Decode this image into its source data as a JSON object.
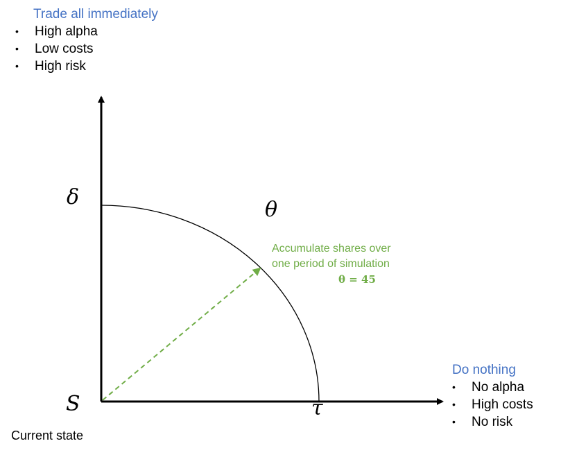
{
  "trade_all": {
    "title": "Trade all immediately",
    "bullets": [
      "High alpha",
      "Low costs",
      "High risk"
    ]
  },
  "do_nothing": {
    "title": "Do nothing",
    "bullets": [
      "No alpha",
      "High costs",
      "No risk"
    ]
  },
  "axis_labels": {
    "vertical": "δ",
    "horizontal": "τ",
    "origin": "S",
    "arc": "θ"
  },
  "annotation": {
    "line1": "Accumulate shares over",
    "line2": "one period of simulation",
    "formula": "θ = 45"
  },
  "origin_caption": "Current state",
  "colors": {
    "title_blue": "#4472c4",
    "arrow_green": "#70ad47",
    "axis": "#000000"
  }
}
